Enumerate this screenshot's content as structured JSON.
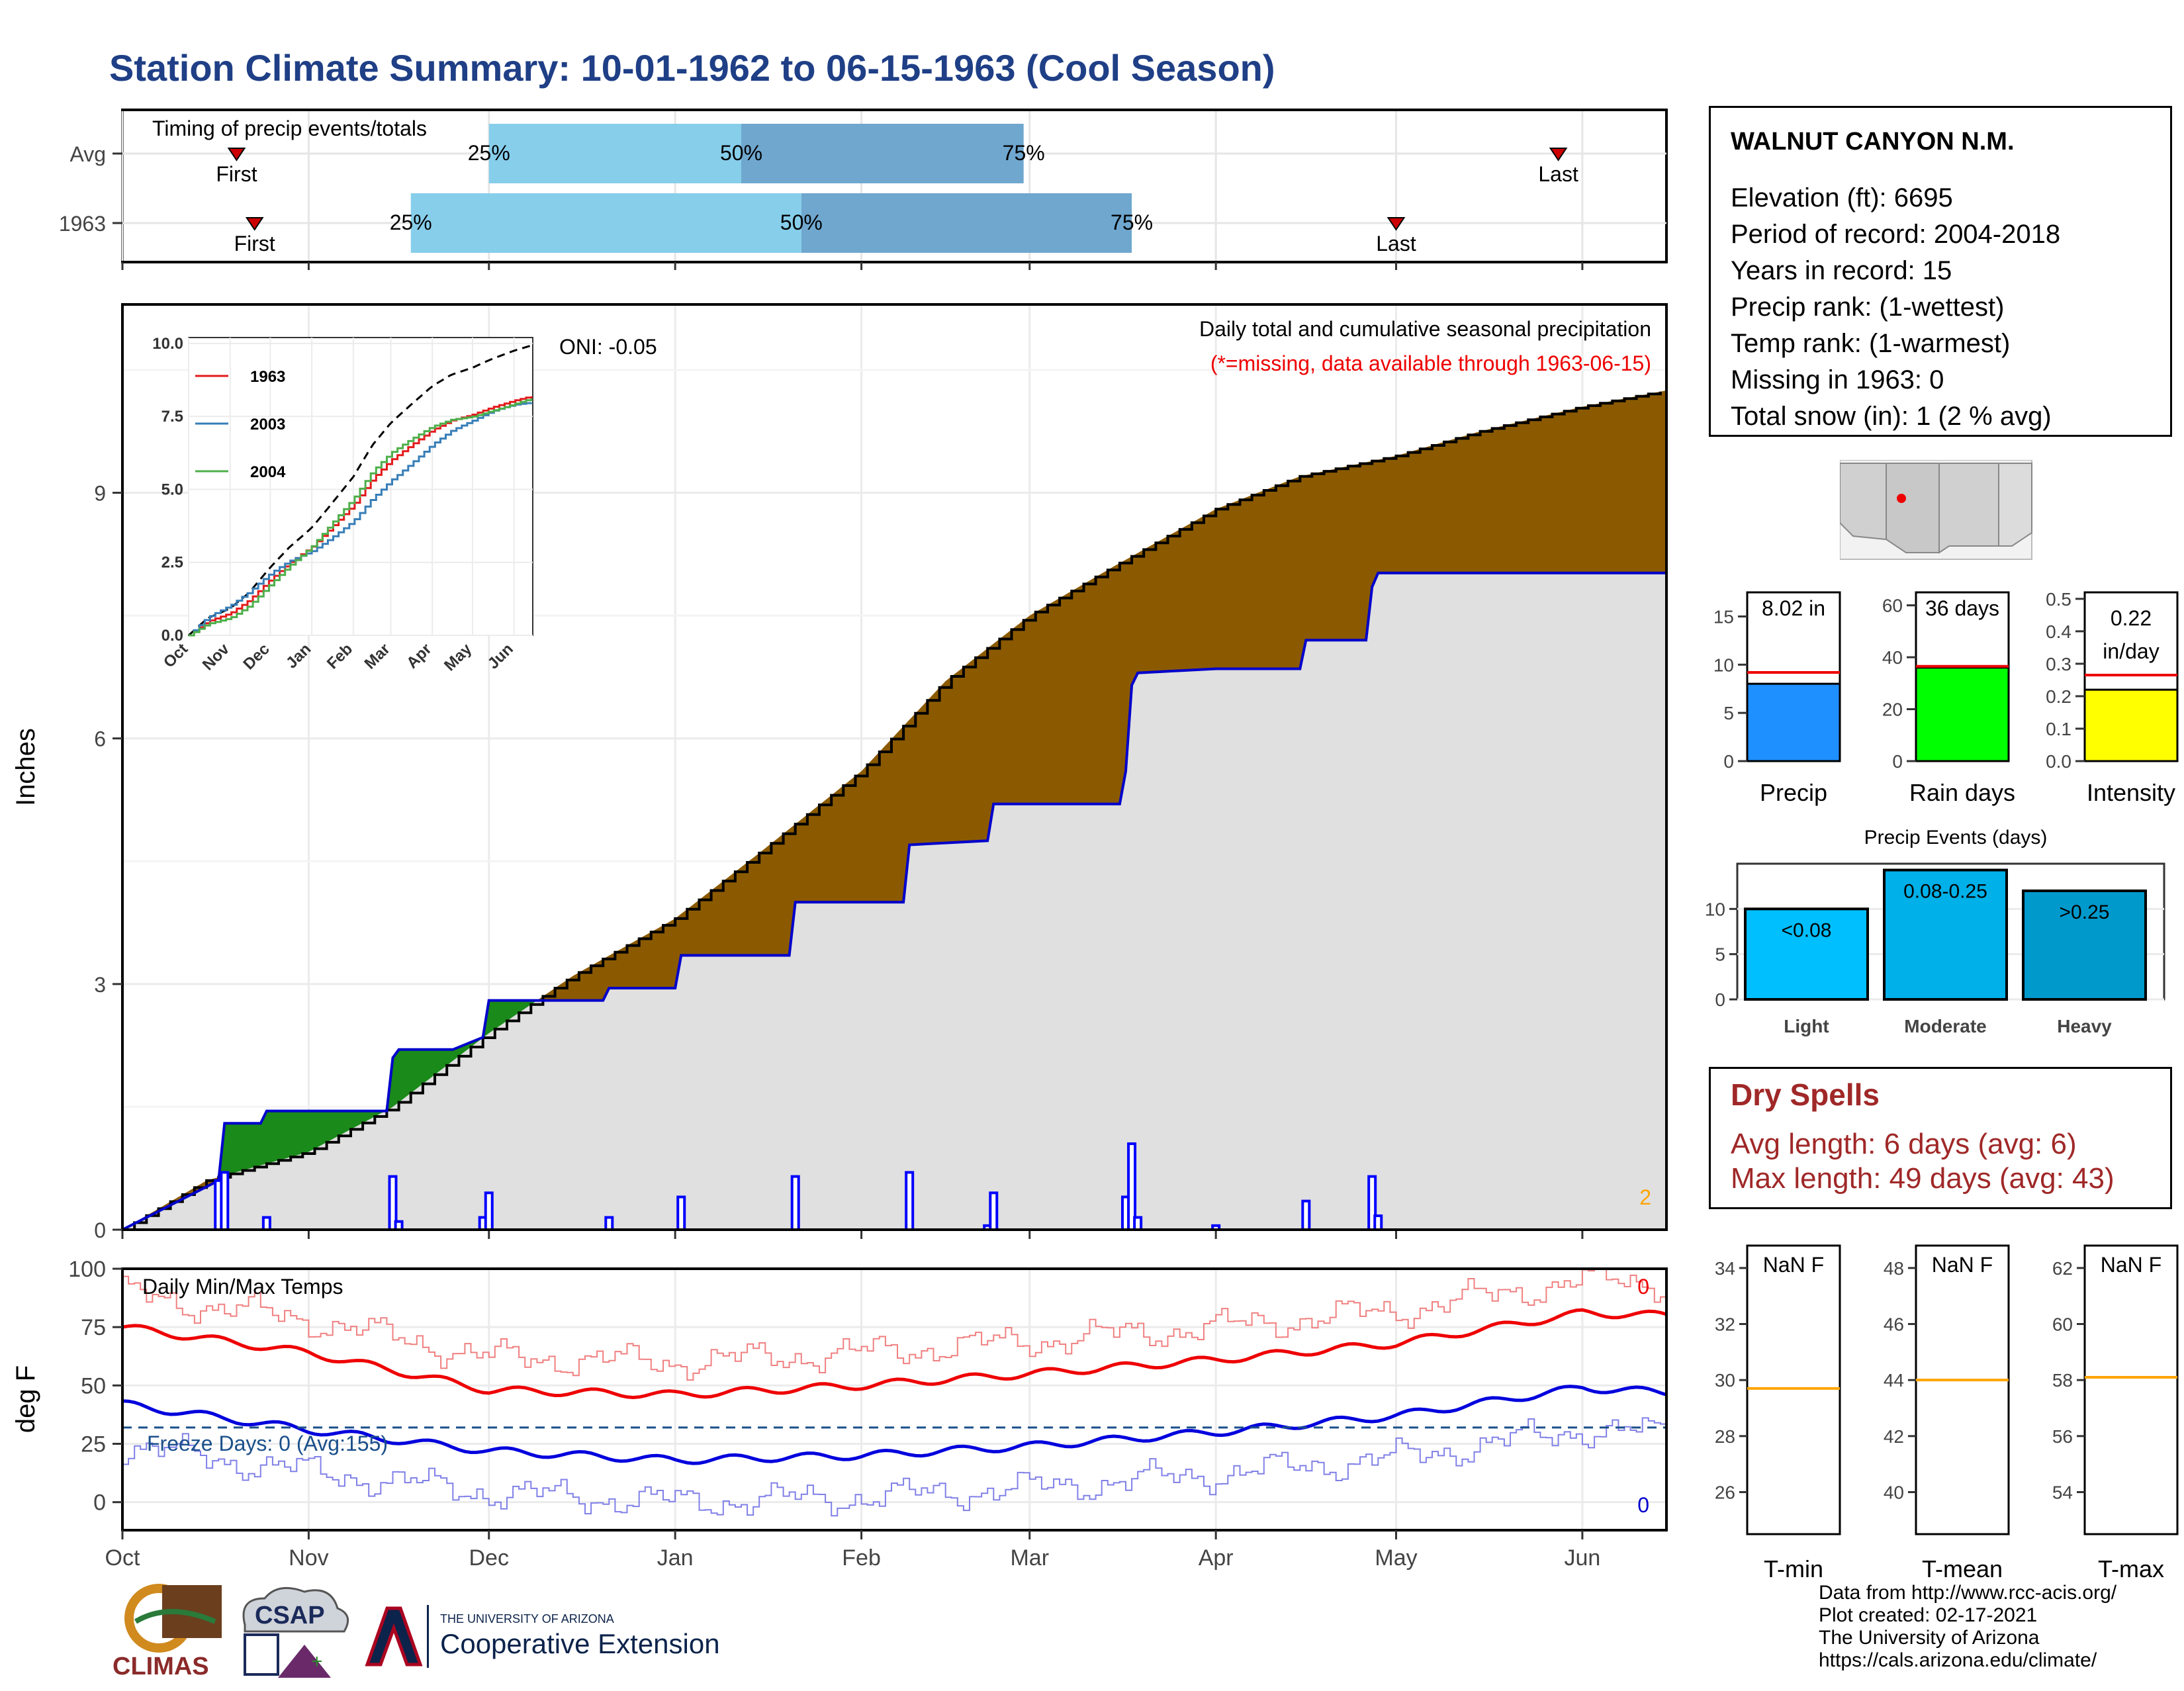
{
  "page": {
    "title": "Station Climate Summary: 10-01-1962 to 06-15-1963 (Cool Season)"
  },
  "timing": {
    "title": "Timing of precip events/totals",
    "rows": [
      {
        "label": "Avg",
        "first": "Oct 20",
        "q25": "Dec 1",
        "q50": "Jan 12",
        "q75": "Feb 28",
        "last": "May 28"
      },
      {
        "label": "1963",
        "first": "Oct 23",
        "q25": "Nov 18",
        "q50": "Jan 22",
        "q75": "Mar 18",
        "last": "May 1"
      }
    ],
    "first_label": "First",
    "last_label": "Last",
    "pct_labels": [
      "25%",
      "50%",
      "75%"
    ],
    "colors": {
      "light": "#87ceeb",
      "dark": "#6fa7cf",
      "marker": "#cc0000"
    }
  },
  "precip_chart": {
    "ylabel": "Inches",
    "yticks": [
      0,
      3,
      6,
      9
    ],
    "ylim": [
      0,
      11.3
    ],
    "oni": "ONI: -0.05",
    "legend_title": "Daily total and cumulative seasonal precipitation",
    "missing_note": "(*=missing, data available through 1963-06-15)",
    "corner_count": "2",
    "colors": {
      "deficit": "#8b5a00",
      "surplus": "#1a8a1a",
      "normal_fill": "#e0e0e0",
      "actual_line": "#0000cc",
      "bar": "#0000ff"
    }
  },
  "inset": {
    "yticks": [
      "0.0",
      "2.5",
      "5.0",
      "7.5",
      "10.0"
    ],
    "xticks": [
      "Oct",
      "Nov",
      "Dec",
      "Jan",
      "Feb",
      "Mar",
      "Apr",
      "May",
      "Jun"
    ],
    "legend": [
      {
        "name": "1963",
        "color": "#e41a1c"
      },
      {
        "name": "2003",
        "color": "#377eb8"
      },
      {
        "name": "2004",
        "color": "#4daf4a"
      }
    ]
  },
  "temp_chart": {
    "ylabel": "deg F",
    "title": "Daily Min/Max Temps",
    "freeze_days": "Freeze Days: 0 (Avg:155)",
    "yticks": [
      0,
      25,
      50,
      75,
      100
    ],
    "max_count": "0",
    "min_count": "0",
    "xticks": [
      "Oct",
      "Nov",
      "Dec",
      "Jan",
      "Feb",
      "Mar",
      "Apr",
      "May",
      "Jun"
    ]
  },
  "station": {
    "name": "WALNUT CANYON N.M.",
    "lines": [
      "Elevation (ft): 6695",
      "Period of record: 2004-2018",
      "Years in record: 15",
      "Precip rank:  (1-wettest)",
      "Temp rank:  (1-warmest)",
      "Missing in 1963: 0",
      "Total snow (in): 1 (2 % avg)"
    ]
  },
  "gauges": [
    {
      "name": "Precip",
      "value_label": "8.02 in",
      "value": 8.02,
      "normal": 9.2,
      "yticks": [
        0,
        5,
        10,
        15
      ],
      "ymax": 17.5,
      "color": "#1e90ff"
    },
    {
      "name": "Rain days",
      "value_label": "36 days",
      "value": 36,
      "normal": 36.5,
      "yticks": [
        0,
        20,
        40,
        60
      ],
      "ymax": 65,
      "color": "#00ff00"
    },
    {
      "name": "Intensity",
      "value_label": "0.22 in/day",
      "value": 0.22,
      "normal": 0.265,
      "yticks": [
        "0.0",
        "0.1",
        "0.2",
        "0.3",
        "0.4",
        "0.5"
      ],
      "ymax": 0.52,
      "color": "#ffff00"
    }
  ],
  "events": {
    "title": "Precip Events (days)",
    "yticks": [
      0,
      5,
      10
    ],
    "bars": [
      {
        "name": "Light",
        "label": "<0.08",
        "value": 10,
        "color": "#00bfff"
      },
      {
        "name": "Moderate",
        "label": "0.08-0.25",
        "value": 14.3,
        "color": "#00b0e8"
      },
      {
        "name": "Heavy",
        "label": ">0.25",
        "value": 12,
        "color": "#0099cc"
      }
    ]
  },
  "dry_spells": {
    "title": "Dry Spells",
    "avg_length": "Avg length: 6 days (avg: 6)",
    "max_length": "Max length: 49 days (avg: 43)"
  },
  "temp_gauges": [
    {
      "name": "T-min",
      "value_label": "NaN F",
      "yticks": [
        26,
        28,
        30,
        32,
        34
      ],
      "normal": 29.7
    },
    {
      "name": "T-mean",
      "value_label": "NaN F",
      "yticks": [
        40,
        42,
        44,
        46,
        48
      ],
      "normal": 44
    },
    {
      "name": "T-max",
      "value_label": "NaN F",
      "yticks": [
        54,
        56,
        58,
        60,
        62
      ],
      "normal": 58.1
    }
  ],
  "logos": {
    "climas": "CLIMAS",
    "csap": "CSAP",
    "ua_small": "THE UNIVERSITY OF ARIZONA",
    "coop": "Cooperative Extension"
  },
  "credits": [
    "Data from http://www.rcc-acis.org/",
    "Plot created: 02-17-2021",
    "The University of Arizona",
    "https://cals.arizona.edu/climate/"
  ],
  "chart_data": [
    {
      "type": "area",
      "title": "Daily total and cumulative seasonal precipitation",
      "ylabel": "Inches",
      "ylim": [
        0,
        11.3
      ],
      "x_range": [
        "1962-10-01",
        "1963-06-15"
      ],
      "series": [
        {
          "name": "",
          "points": [
            [
              "1962-10-01",
              0
            ],
            [
              "1962-10-15",
              0.6
            ],
            [
              "1962-11-01",
              0.95
            ],
            [
              "1962-11-15",
              1.5
            ],
            [
              "1962-12-01",
              2.4
            ],
            [
              "1962-12-15",
              3.1
            ],
            [
              "1963-01-01",
              3.8
            ],
            [
              "1963-01-15",
              4.6
            ],
            [
              "1963-02-01",
              5.6
            ],
            [
              "1963-02-15",
              6.7
            ],
            [
              "1963-03-01",
              7.5
            ],
            [
              "1963-03-15",
              8.1
            ],
            [
              "1963-04-01",
              8.8
            ],
            [
              "1963-04-15",
              9.2
            ],
            [
              "1963-05-01",
              9.45
            ],
            [
              "1963-05-15",
              9.75
            ],
            [
              "1963-06-01",
              10.05
            ],
            [
              "1963-06-15",
              10.25
            ]
          ]
        },
        {
          "name": "1963",
          "points": [
            [
              "1962-10-01",
              0
            ],
            [
              "1962-10-17",
              0.6
            ],
            [
              "1962-10-18",
              1.3
            ],
            [
              "1962-10-24",
              1.3
            ],
            [
              "1962-10-25",
              1.45
            ],
            [
              "1962-11-14",
              1.45
            ],
            [
              "1962-11-15",
              2.1
            ],
            [
              "1962-11-16",
              2.2
            ],
            [
              "1962-11-25",
              2.2
            ],
            [
              "1962-11-30",
              2.35
            ],
            [
              "1962-12-01",
              2.8
            ],
            [
              "1962-12-20",
              2.8
            ],
            [
              "1962-12-21",
              2.95
            ],
            [
              "1963-01-01",
              2.95
            ],
            [
              "1963-01-02",
              3.35
            ],
            [
              "1963-01-20",
              3.35
            ],
            [
              "1963-01-21",
              4.0
            ],
            [
              "1963-02-08",
              4.0
            ],
            [
              "1963-02-09",
              4.7
            ],
            [
              "1963-02-22",
              4.75
            ],
            [
              "1963-02-23",
              5.2
            ],
            [
              "1963-03-16",
              5.2
            ],
            [
              "1963-03-17",
              5.6
            ],
            [
              "1963-03-18",
              6.65
            ],
            [
              "1963-03-19",
              6.8
            ],
            [
              "1963-04-01",
              6.85
            ],
            [
              "1963-04-15",
              6.85
            ],
            [
              "1963-04-16",
              7.2
            ],
            [
              "1963-04-26",
              7.2
            ],
            [
              "1963-04-27",
              7.85
            ],
            [
              "1963-04-28",
              8.02
            ],
            [
              "1963-06-15",
              8.02
            ]
          ]
        }
      ]
    },
    {
      "type": "line",
      "title": "Daily Min/Max Temps",
      "ylabel": "deg F",
      "ylim": [
        -12,
        100
      ],
      "x_range": [
        "1962-10-01",
        "1963-06-15"
      ],
      "series": [
        {
          "name": "",
          "points": [
            [
              "1962-10-01",
              75
            ],
            [
              "1962-11-01",
              64
            ],
            [
              "1962-12-01",
              48
            ],
            [
              "1963-01-01",
              46
            ],
            [
              "1963-02-01",
              50
            ],
            [
              "1963-03-01",
              55
            ],
            [
              "1963-04-01",
              61
            ],
            [
              "1963-05-01",
              68
            ],
            [
              "1963-06-01",
              81
            ],
            [
              "1963-06-15",
              80
            ]
          ]
        },
        {
          "name": "",
          "points": [
            [
              "1962-10-01",
              42
            ],
            [
              "1962-11-01",
              31
            ],
            [
              "1962-12-01",
              22
            ],
            [
              "1963-01-01",
              18
            ],
            [
              "1963-02-01",
              20
            ],
            [
              "1963-03-01",
              24
            ],
            [
              "1963-04-01",
              30
            ],
            [
              "1963-05-01",
              37
            ],
            [
              "1963-06-01",
              49
            ],
            [
              "1963-06-15",
              47
            ]
          ]
        }
      ]
    }
  ]
}
